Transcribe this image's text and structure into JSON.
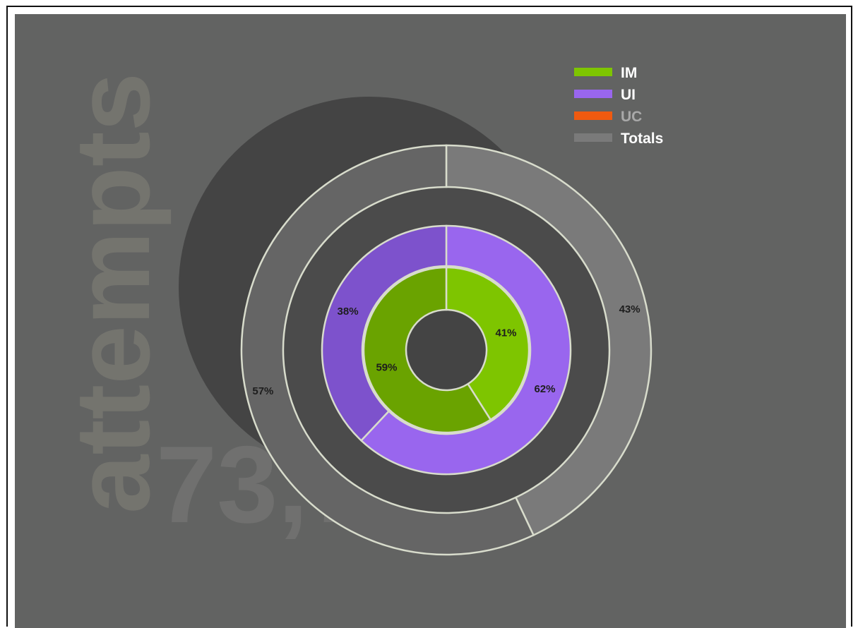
{
  "background": {
    "word": "attempts",
    "number": "73,762"
  },
  "colors": {
    "panel": "#626362",
    "shadow_disc": "#444444",
    "im_light": "#7ec500",
    "im_dark": "#6aa300",
    "ui_light": "#9966ee",
    "ui_dark": "#7d52cc",
    "uc": "#f05a10",
    "totals_light": "#7a7a7a",
    "totals_dark": "#656565",
    "ring_stroke": "#d8dccc"
  },
  "chart_data": {
    "type": "pie",
    "rings": [
      {
        "name": "IM",
        "slices": [
          {
            "label": "41%",
            "value": 41,
            "shade": "light"
          },
          {
            "label": "59%",
            "value": 59,
            "shade": "dark"
          }
        ]
      },
      {
        "name": "UI",
        "slices": [
          {
            "label": "62%",
            "value": 62,
            "shade": "light"
          },
          {
            "label": "38%",
            "value": 38,
            "shade": "dark"
          }
        ]
      },
      {
        "name": "UC",
        "slices": []
      },
      {
        "name": "Totals",
        "slices": [
          {
            "label": "43%",
            "value": 43,
            "shade": "light"
          },
          {
            "label": "57%",
            "value": 57,
            "shade": "dark"
          }
        ]
      }
    ],
    "legend": [
      {
        "label": "IM",
        "color": "#7ec500",
        "text_color": "#ffffff"
      },
      {
        "label": "UI",
        "color": "#9966ee",
        "text_color": "#ffffff"
      },
      {
        "label": "UC",
        "color": "#f05a10",
        "text_color": "#a9a9a9"
      },
      {
        "label": "Totals",
        "color": "#7a7a7a",
        "text_color": "#ffffff"
      }
    ],
    "legend_position": "top-right"
  }
}
